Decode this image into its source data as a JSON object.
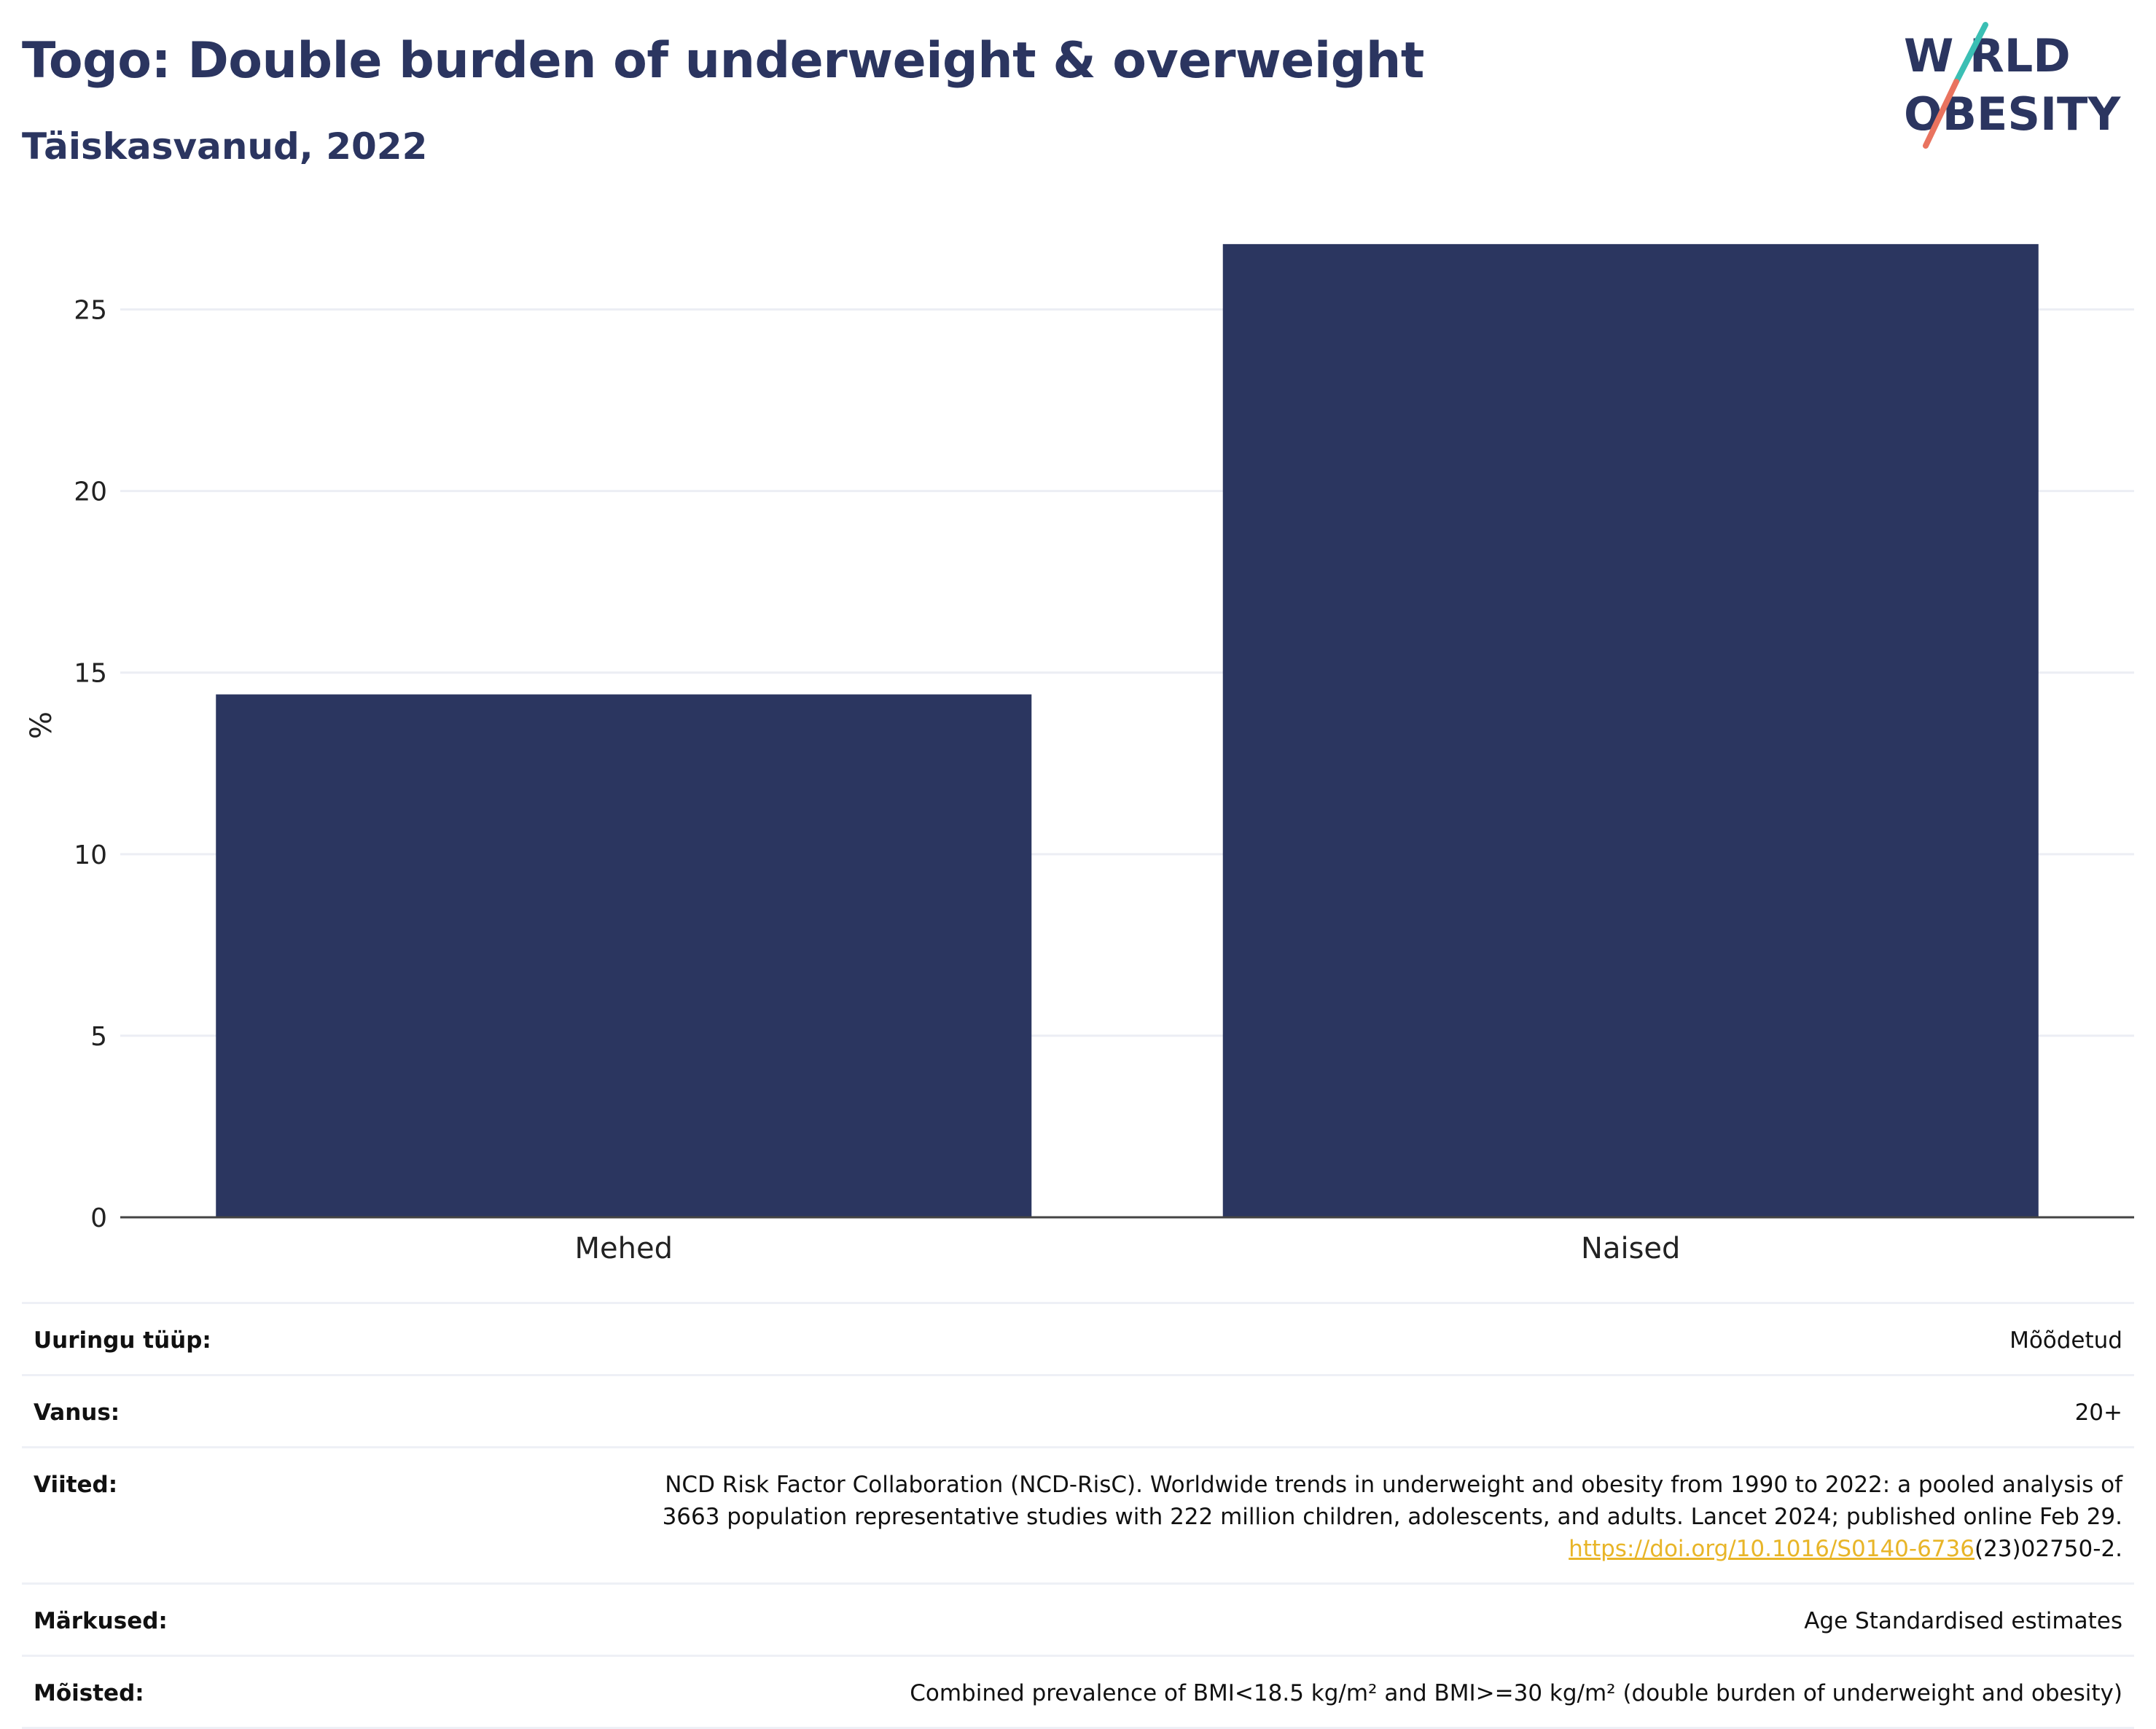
{
  "header": {
    "title": "Togo: Double burden of underweight & overweight",
    "subtitle": "Täiskasvanud, 2022"
  },
  "logo": {
    "line1": "W RLD",
    "line2": "OBESITY",
    "colors": {
      "text": "#2b3560",
      "slash_top": "#3bbfb4",
      "slash_bottom": "#e9735f"
    }
  },
  "chart_data": {
    "type": "bar",
    "categories": [
      "Mehed",
      "Naised"
    ],
    "values": [
      14.4,
      26.8
    ],
    "title": "Togo: Double burden of underweight & overweight",
    "subtitle": "Täiskasvanud, 2022",
    "xlabel": "",
    "ylabel": "%",
    "ylim": [
      0,
      27.5
    ],
    "yticks": [
      0,
      5,
      10,
      15,
      20,
      25
    ],
    "grid": true,
    "legend": "none",
    "bar_color": "#2b3660"
  },
  "info": {
    "rows": [
      {
        "label": "Uuringu tüüp:",
        "value": "Mõõdetud"
      },
      {
        "label": "Vanus:",
        "value": "20+"
      },
      {
        "label": "Viited:",
        "value_lines": [
          "NCD Risk Factor Collaboration (NCD-RisC). Worldwide trends in underweight and obesity from 1990 to 2022: a pooled analysis of",
          "3663 population representative studies with 222 million children, adolescents, and adults. Lancet 2024; published online Feb 29."
        ],
        "link_text": "https://doi.org/10.1016/S0140-6736",
        "link_suffix": "(23)02750-2."
      },
      {
        "label": "Märkused:",
        "value": "Age Standardised estimates"
      },
      {
        "label": "Mõisted:",
        "value": "Combined prevalence of BMI<18.5 kg/m² and BMI>=30 kg/m² (double burden of underweight and obesity)"
      }
    ]
  }
}
